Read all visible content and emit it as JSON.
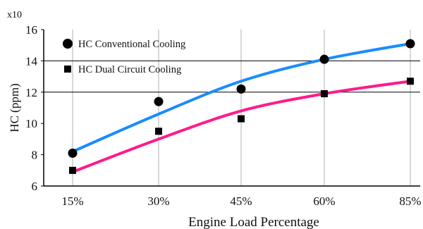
{
  "chart_data": {
    "type": "line",
    "title": "",
    "xlabel": "Engine Load Percentage",
    "ylabel": "HC (ppm)",
    "y_multiplier": "x10",
    "categories": [
      "15%",
      "30%",
      "45%",
      "60%",
      "85%"
    ],
    "ylim": [
      6,
      16
    ],
    "yticks": [
      6,
      8,
      10,
      12,
      14,
      16
    ],
    "grid": {
      "horizontal": [
        12,
        14
      ],
      "vertical": true
    },
    "legend_position": "top-left",
    "series": [
      {
        "name": "HC  Conventional  Cooling",
        "marker": "circle",
        "color": "#1a8cff",
        "points": [
          8.1,
          11.4,
          12.2,
          14.1,
          15.1
        ],
        "fit": [
          8.2,
          10.6,
          12.7,
          14.1,
          15.1
        ]
      },
      {
        "name": "HC Dual Circuit Cooling",
        "marker": "square",
        "color": "#ff1a8c",
        "points": [
          7.0,
          9.5,
          10.3,
          11.9,
          12.7
        ],
        "fit": [
          6.9,
          9.0,
          10.8,
          11.9,
          12.7
        ]
      }
    ]
  }
}
